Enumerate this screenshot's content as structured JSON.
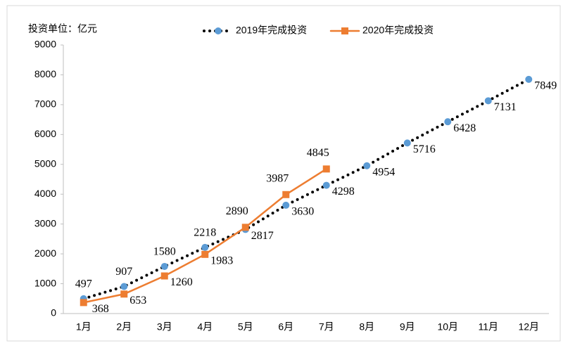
{
  "chart_data": {
    "type": "line",
    "y_unit_label": "投资单位：亿元",
    "categories": [
      "1月",
      "2月",
      "3月",
      "4月",
      "5月",
      "6月",
      "7月",
      "8月",
      "9月",
      "10月",
      "11月",
      "12月"
    ],
    "series": [
      {
        "name": "2019年完成投资",
        "color": "#5b9bd5",
        "line_color": "#000000",
        "line_style": "dotted",
        "marker": "circle",
        "values": [
          497,
          907,
          1580,
          2218,
          2817,
          3630,
          4298,
          4954,
          5716,
          6428,
          7131,
          7849
        ]
      },
      {
        "name": "2020年完成投资",
        "color": "#ed7d31",
        "line_color": "#ed7d31",
        "line_style": "solid",
        "marker": "square",
        "values": [
          368,
          653,
          1260,
          1983,
          2890,
          3987,
          4845,
          null,
          null,
          null,
          null,
          null
        ]
      }
    ],
    "ylim": [
      0,
      9000
    ],
    "yticks": [
      0,
      1000,
      2000,
      3000,
      4000,
      5000,
      6000,
      7000,
      8000,
      9000
    ],
    "grid": false,
    "legend": "top"
  }
}
